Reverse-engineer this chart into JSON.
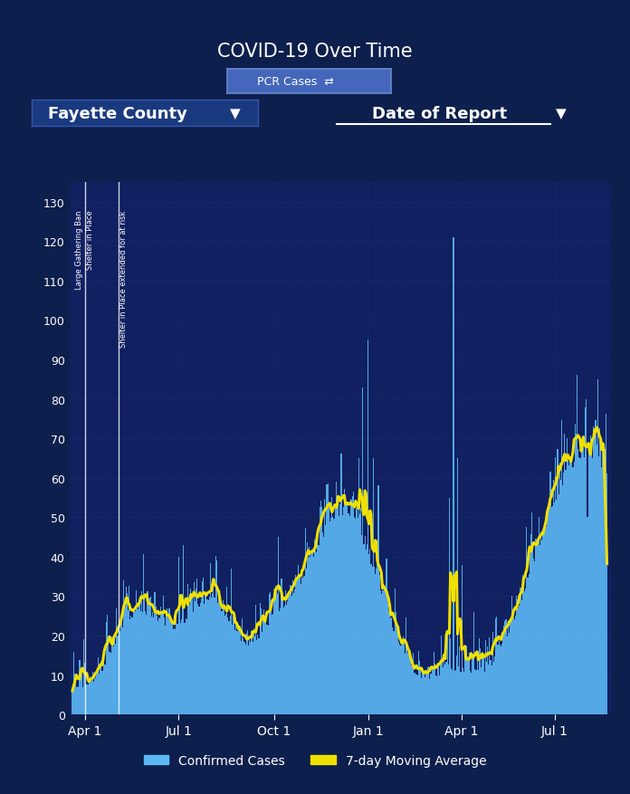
{
  "title": "COVID-19 Over Time",
  "background_color": "#0d1f4c",
  "plot_bg_color": "#102060",
  "bar_color": "#5bb8f5",
  "line_color": "#f0e000",
  "yticks": [
    0,
    10,
    20,
    30,
    40,
    50,
    60,
    70,
    80,
    90,
    100,
    110,
    120,
    130
  ],
  "xtick_labels": [
    "Apr 1",
    "Jul 1",
    "Oct 1",
    "Jan 1",
    "Apr 1",
    "Jul 1"
  ],
  "county_label": "Fayette County",
  "date_label": "Date of Report",
  "pcr_label": "PCR Cases",
  "legend_bar": "Confirmed Cases",
  "legend_line": "7-day Moving Average",
  "grid_color": "#1e3580",
  "tick_color": "#ffffff",
  "vline1_day": 12,
  "vline2_day": 45,
  "ann1a": "Large Gathering Ban",
  "ann1b": "Shelter in Place",
  "ann2": "Shelter in Place extended for at risk",
  "xtick_days": [
    12,
    103,
    196,
    287,
    378,
    468
  ],
  "n_days": 520
}
